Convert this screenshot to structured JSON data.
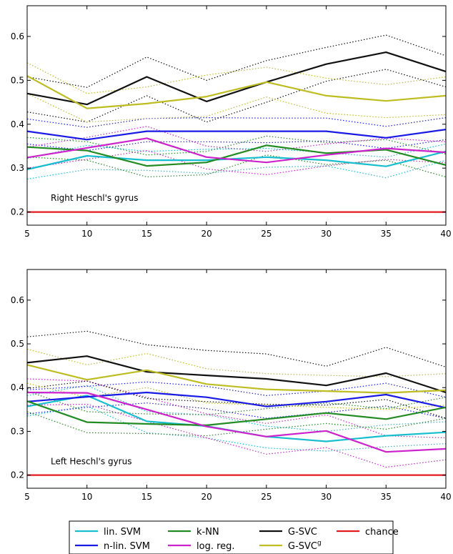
{
  "chart_data": [
    {
      "type": "line",
      "annotation": "Right Heschl's gyrus",
      "x": [
        5,
        10,
        15,
        20,
        25,
        30,
        35,
        40
      ],
      "xlim": [
        5,
        40
      ],
      "ylim": [
        0.17,
        0.67
      ],
      "xticks": [
        "5",
        "10",
        "15",
        "20",
        "25",
        "30",
        "35",
        "40"
      ],
      "yticks": [
        "0.2",
        "0.3",
        "0.4",
        "0.5",
        "0.6"
      ],
      "series": [
        {
          "key": "lin_svm",
          "color": "#17becf",
          "values": [
            0.297,
            0.328,
            0.318,
            0.318,
            0.325,
            0.318,
            0.304,
            0.338
          ],
          "lower": [
            0.275,
            0.297,
            0.295,
            0.288,
            0.302,
            0.305,
            0.278,
            0.318
          ],
          "upper": [
            0.322,
            0.352,
            0.338,
            0.343,
            0.345,
            0.335,
            0.325,
            0.355
          ]
        },
        {
          "key": "nlin_svm",
          "color": "#1a1ae6",
          "values": [
            0.384,
            0.365,
            0.384,
            0.384,
            0.384,
            0.384,
            0.369,
            0.388
          ],
          "lower": [
            0.355,
            0.34,
            0.36,
            0.36,
            0.358,
            0.362,
            0.345,
            0.365
          ],
          "upper": [
            0.412,
            0.393,
            0.413,
            0.415,
            0.414,
            0.414,
            0.395,
            0.415
          ]
        },
        {
          "key": "knn",
          "color": "#228b22",
          "values": [
            0.348,
            0.34,
            0.305,
            0.313,
            0.352,
            0.334,
            0.342,
            0.307
          ],
          "lower": [
            0.325,
            0.318,
            0.28,
            0.285,
            0.33,
            0.308,
            0.318,
            0.28
          ],
          "upper": [
            0.37,
            0.36,
            0.33,
            0.338,
            0.373,
            0.358,
            0.365,
            0.332
          ]
        },
        {
          "key": "log_reg",
          "color": "#cc22cc",
          "values": [
            0.324,
            0.346,
            0.368,
            0.325,
            0.313,
            0.33,
            0.345,
            0.336
          ],
          "lower": [
            0.3,
            0.32,
            0.34,
            0.298,
            0.285,
            0.305,
            0.32,
            0.312
          ],
          "upper": [
            0.348,
            0.37,
            0.395,
            0.35,
            0.338,
            0.355,
            0.368,
            0.36
          ]
        },
        {
          "key": "gsvc",
          "color": "#111111",
          "values": [
            0.47,
            0.445,
            0.508,
            0.452,
            0.496,
            0.537,
            0.564,
            0.52
          ],
          "lower": [
            0.428,
            0.405,
            0.465,
            0.405,
            0.45,
            0.498,
            0.525,
            0.485
          ],
          "upper": [
            0.508,
            0.484,
            0.553,
            0.5,
            0.545,
            0.575,
            0.603,
            0.556
          ]
        },
        {
          "key": "gsvcg",
          "color": "#bdbd22",
          "values": [
            0.51,
            0.436,
            0.447,
            0.463,
            0.496,
            0.465,
            0.453,
            0.465
          ],
          "lower": [
            0.47,
            0.405,
            0.413,
            0.418,
            0.462,
            0.425,
            0.415,
            0.422
          ],
          "upper": [
            0.54,
            0.47,
            0.485,
            0.512,
            0.53,
            0.505,
            0.49,
            0.508
          ]
        },
        {
          "key": "chance",
          "color": "#e41a1c",
          "values": [
            0.2,
            0.2,
            0.2,
            0.2,
            0.2,
            0.2,
            0.2,
            0.2
          ]
        }
      ]
    },
    {
      "type": "line",
      "annotation": "Left Heschl's gyrus",
      "x": [
        5,
        10,
        15,
        20,
        25,
        30,
        35,
        40
      ],
      "xlim": [
        5,
        40
      ],
      "ylim": [
        0.17,
        0.67
      ],
      "xticks": [
        "5",
        "10",
        "15",
        "20",
        "25",
        "30",
        "35",
        "40"
      ],
      "yticks": [
        "0.2",
        "0.3",
        "0.4",
        "0.5",
        "0.6"
      ],
      "series": [
        {
          "key": "lin_svm",
          "color": "#17becf",
          "values": [
            0.357,
            0.382,
            0.323,
            0.312,
            0.288,
            0.277,
            0.29,
            0.298
          ],
          "lower": [
            0.335,
            0.358,
            0.297,
            0.285,
            0.262,
            0.255,
            0.265,
            0.272
          ],
          "upper": [
            0.382,
            0.405,
            0.345,
            0.338,
            0.312,
            0.3,
            0.315,
            0.322
          ]
        },
        {
          "key": "nlin_svm",
          "color": "#1a1ae6",
          "values": [
            0.368,
            0.379,
            0.389,
            0.378,
            0.357,
            0.368,
            0.384,
            0.354
          ],
          "lower": [
            0.34,
            0.355,
            0.365,
            0.352,
            0.33,
            0.343,
            0.358,
            0.33
          ],
          "upper": [
            0.395,
            0.403,
            0.413,
            0.403,
            0.382,
            0.392,
            0.41,
            0.378
          ]
        },
        {
          "key": "knn",
          "color": "#228b22",
          "values": [
            0.369,
            0.321,
            0.317,
            0.314,
            0.328,
            0.342,
            0.328,
            0.355
          ],
          "lower": [
            0.345,
            0.297,
            0.295,
            0.29,
            0.305,
            0.318,
            0.305,
            0.33
          ],
          "upper": [
            0.392,
            0.345,
            0.34,
            0.338,
            0.352,
            0.365,
            0.352,
            0.378
          ]
        },
        {
          "key": "log_reg",
          "color": "#cc22cc",
          "values": [
            0.389,
            0.388,
            0.35,
            0.311,
            0.288,
            0.301,
            0.253,
            0.26
          ],
          "lower": [
            0.36,
            0.362,
            0.323,
            0.285,
            0.248,
            0.263,
            0.218,
            0.235
          ],
          "upper": [
            0.42,
            0.415,
            0.378,
            0.34,
            0.318,
            0.338,
            0.29,
            0.285
          ]
        },
        {
          "key": "gsvc",
          "color": "#111111",
          "values": [
            0.457,
            0.472,
            0.436,
            0.428,
            0.42,
            0.405,
            0.433,
            0.389
          ],
          "lower": [
            0.398,
            0.415,
            0.375,
            0.368,
            0.362,
            0.36,
            0.373,
            0.33
          ],
          "upper": [
            0.516,
            0.529,
            0.498,
            0.485,
            0.477,
            0.449,
            0.492,
            0.447
          ]
        },
        {
          "key": "gsvcg",
          "color": "#bdbd22",
          "values": [
            0.452,
            0.418,
            0.44,
            0.408,
            0.396,
            0.392,
            0.388,
            0.394
          ],
          "lower": [
            0.41,
            0.378,
            0.4,
            0.365,
            0.36,
            0.355,
            0.35,
            0.36
          ],
          "upper": [
            0.488,
            0.452,
            0.478,
            0.443,
            0.432,
            0.428,
            0.425,
            0.432
          ]
        },
        {
          "key": "chance",
          "color": "#e41a1c",
          "values": [
            0.2,
            0.2,
            0.2,
            0.2,
            0.2,
            0.2,
            0.2,
            0.2
          ]
        }
      ]
    }
  ],
  "legend": {
    "placement": "bottom",
    "items": [
      {
        "key": "lin_svm",
        "label": "lin. SVM",
        "color": "#17becf"
      },
      {
        "key": "nlin_svm",
        "label": "n-lin. SVM",
        "color": "#1a1ae6"
      },
      {
        "key": "knn",
        "label": "k-NN",
        "color": "#228b22"
      },
      {
        "key": "log_reg",
        "label": "log. reg.",
        "color": "#cc22cc"
      },
      {
        "key": "gsvc",
        "label": "G-SVC",
        "color": "#111111"
      },
      {
        "key": "gsvcg",
        "label": "G-SVC",
        "superscript": "g",
        "color": "#bdbd22"
      },
      {
        "key": "chance",
        "label": "chance",
        "color": "#e41a1c"
      }
    ]
  }
}
